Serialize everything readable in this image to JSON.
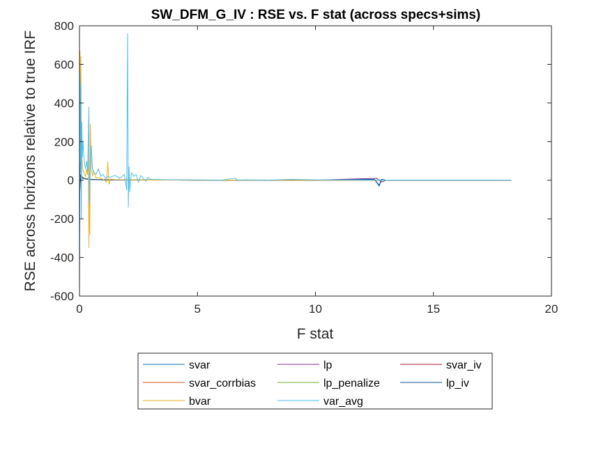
{
  "chart_data": {
    "type": "line",
    "title": "SW_DFM_G_IV : RSE vs. F stat (across specs+sims)",
    "xlabel": "F stat",
    "ylabel": "RSE across horizons relative to true IRF",
    "xlim": [
      0,
      20
    ],
    "ylim": [
      -600,
      800
    ],
    "xticks": [
      0,
      5,
      10,
      15,
      20
    ],
    "yticks": [
      -600,
      -400,
      -200,
      0,
      200,
      400,
      600,
      800
    ],
    "grid": false,
    "legend_position": "bottom-outside",
    "legend_columns": 3,
    "series": [
      {
        "name": "svar",
        "color": "#0072BD",
        "x": [
          0,
          0.03,
          0.06,
          0.1,
          0.2,
          0.4,
          0.7,
          1.0,
          2.0,
          5.0,
          8.0,
          11.0,
          12.5,
          12.7,
          12.8,
          13.0,
          15.0,
          18.3
        ],
        "y": [
          -600,
          520,
          40,
          20,
          8,
          4,
          3,
          2,
          1,
          0.5,
          0.5,
          0.5,
          3,
          -25,
          2,
          0.5,
          0.5,
          0.5
        ]
      },
      {
        "name": "lp",
        "color": "#7E2F8E",
        "x": [
          0,
          0.05,
          0.1,
          0.2,
          0.4,
          0.7,
          1.0,
          2.0,
          5.0,
          10.0,
          12.6,
          12.8,
          13.0,
          18.3
        ],
        "y": [
          -60,
          10,
          12,
          8,
          4,
          3,
          2,
          1,
          0.5,
          0.5,
          10,
          -10,
          0.5,
          0.5
        ]
      },
      {
        "name": "svar_iv",
        "color": "#A2142F",
        "x": [
          0,
          0.05,
          0.1,
          0.2,
          0.4,
          0.7,
          1.0,
          2.0,
          5.0,
          10.0,
          18.3
        ],
        "y": [
          5,
          25,
          18,
          10,
          6,
          4,
          3,
          2,
          1,
          0.5,
          0.5
        ]
      },
      {
        "name": "svar_corrbias",
        "color": "#D95319",
        "x": [
          0,
          0.05,
          0.1,
          0.2,
          0.4,
          0.7,
          1.0,
          2.0,
          5.0,
          10.0,
          18.3
        ],
        "y": [
          5,
          20,
          12,
          8,
          5,
          3,
          2,
          1,
          0.5,
          0.5,
          0.5
        ]
      },
      {
        "name": "lp_penalize",
        "color": "#77AC30",
        "x": [
          0,
          0.05,
          0.1,
          0.2,
          0.4,
          0.7,
          1.0,
          2.0,
          5.0,
          10.0,
          18.3
        ],
        "y": [
          10,
          30,
          20,
          10,
          6,
          4,
          3,
          2,
          1,
          0.5,
          0.5
        ]
      },
      {
        "name": "lp_iv",
        "color": "#0B5394",
        "x": [
          0,
          0.05,
          0.1,
          0.2,
          0.4,
          0.7,
          1.0,
          2.0,
          5.0,
          10.0,
          12.5,
          12.7,
          12.8,
          13.0,
          18.3
        ],
        "y": [
          -100,
          30,
          15,
          8,
          5,
          3,
          2,
          1,
          0.5,
          0.5,
          5,
          -30,
          5,
          0.5,
          0.5
        ]
      },
      {
        "name": "bvar",
        "color": "#EDB120",
        "x": [
          0,
          0.02,
          0.04,
          0.06,
          0.08,
          0.1,
          0.14,
          0.18,
          0.22,
          0.26,
          0.3,
          0.34,
          0.37,
          0.4,
          0.42,
          0.44,
          0.46,
          0.5,
          0.55,
          0.6,
          0.7,
          0.8,
          0.9,
          1.0,
          1.15,
          1.2,
          1.25,
          1.3,
          1.5,
          2.0,
          3.0,
          5.0,
          10.0,
          18.3
        ],
        "y": [
          150,
          670,
          100,
          640,
          200,
          120,
          60,
          40,
          30,
          20,
          60,
          30,
          170,
          -350,
          40,
          -280,
          290,
          60,
          20,
          50,
          10,
          15,
          8,
          5,
          -10,
          95,
          -20,
          5,
          3,
          2,
          1,
          0.5,
          0.5,
          0.5
        ]
      },
      {
        "name": "var_avg",
        "color": "#4DBEEE",
        "x": [
          0,
          0.02,
          0.04,
          0.06,
          0.08,
          0.1,
          0.12,
          0.15,
          0.18,
          0.22,
          0.26,
          0.3,
          0.35,
          0.4,
          0.42,
          0.45,
          0.5,
          0.55,
          0.6,
          0.7,
          0.8,
          0.9,
          1.0,
          1.1,
          1.2,
          1.3,
          1.5,
          1.7,
          1.9,
          2.0,
          2.04,
          2.07,
          2.1,
          2.13,
          2.2,
          2.3,
          2.4,
          2.5,
          2.6,
          2.7,
          2.8,
          2.9,
          3.0,
          3.5,
          4.0,
          5.0,
          6.0,
          6.6,
          6.7,
          7.0,
          8.0,
          9.0,
          10.0,
          12.0,
          14.0,
          18.3
        ],
        "y": [
          -250,
          560,
          90,
          500,
          -200,
          300,
          120,
          200,
          140,
          80,
          60,
          100,
          50,
          380,
          -120,
          40,
          180,
          60,
          40,
          30,
          60,
          20,
          30,
          10,
          20,
          15,
          25,
          10,
          30,
          -50,
          760,
          -140,
          70,
          -60,
          40,
          20,
          30,
          -10,
          25,
          10,
          -5,
          15,
          5,
          3,
          2,
          2,
          1,
          10,
          1,
          2,
          1,
          5,
          2,
          1,
          1,
          1
        ]
      }
    ]
  }
}
